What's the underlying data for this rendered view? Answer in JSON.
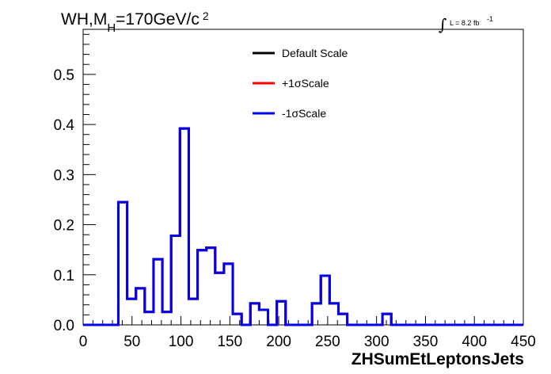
{
  "chart_data": {
    "type": "line",
    "title": {
      "main": "WH,M",
      "subscript": "H",
      "rest": "=170GeV/c",
      "superscript": "2"
    },
    "luminosity": {
      "symbol": "∫",
      "text": "L = 8.2 fb",
      "superscript": "-1"
    },
    "xlabel": "ZHSumEtLeptonsJets",
    "ylabel": "",
    "xlim": [
      0,
      450
    ],
    "ylim": [
      0,
      0.59
    ],
    "x_ticks": [
      "0",
      "50",
      "100",
      "150",
      "200",
      "250",
      "300",
      "350",
      "400",
      "450"
    ],
    "y_ticks": [
      "0.0",
      "0.1",
      "0.2",
      "0.3",
      "0.4",
      "0.5"
    ],
    "legend_position": "top-center",
    "bin_width": 9,
    "bin_edges_start": 0,
    "series": [
      {
        "name": "Default Scale",
        "color": "#000000",
        "values": [
          0,
          0,
          0,
          0,
          0.245,
          0.052,
          0.073,
          0.026,
          0.131,
          0.026,
          0.178,
          0.392,
          0.052,
          0.149,
          0.154,
          0.104,
          0.122,
          0.022,
          0,
          0.043,
          0.03,
          0,
          0.047,
          0,
          0,
          0,
          0.043,
          0.098,
          0.043,
          0.022,
          0,
          0,
          0,
          0,
          0.022,
          0,
          0,
          0,
          0,
          0,
          0,
          0,
          0,
          0,
          0,
          0,
          0,
          0,
          0,
          0
        ]
      },
      {
        "name": "+1σScale",
        "color": "#ff0000",
        "values": [
          0,
          0,
          0,
          0,
          0.245,
          0.052,
          0.073,
          0.026,
          0.131,
          0.026,
          0.178,
          0.392,
          0.052,
          0.149,
          0.154,
          0.104,
          0.122,
          0.022,
          0,
          0.043,
          0.03,
          0,
          0.047,
          0,
          0,
          0,
          0.043,
          0.098,
          0.043,
          0.022,
          0,
          0,
          0,
          0,
          0.022,
          0,
          0,
          0,
          0,
          0,
          0,
          0,
          0,
          0,
          0,
          0,
          0,
          0,
          0,
          0
        ]
      },
      {
        "name": "-1σScale",
        "color": "#0000ee",
        "values": [
          0,
          0,
          0,
          0,
          0.245,
          0.052,
          0.073,
          0.026,
          0.131,
          0.026,
          0.178,
          0.392,
          0.052,
          0.149,
          0.154,
          0.104,
          0.122,
          0.022,
          0,
          0.043,
          0.03,
          0,
          0.047,
          0,
          0,
          0,
          0.043,
          0.098,
          0.043,
          0.022,
          0,
          0,
          0,
          0,
          0.022,
          0,
          0,
          0,
          0,
          0,
          0,
          0,
          0,
          0,
          0,
          0,
          0,
          0,
          0,
          0
        ]
      }
    ]
  }
}
